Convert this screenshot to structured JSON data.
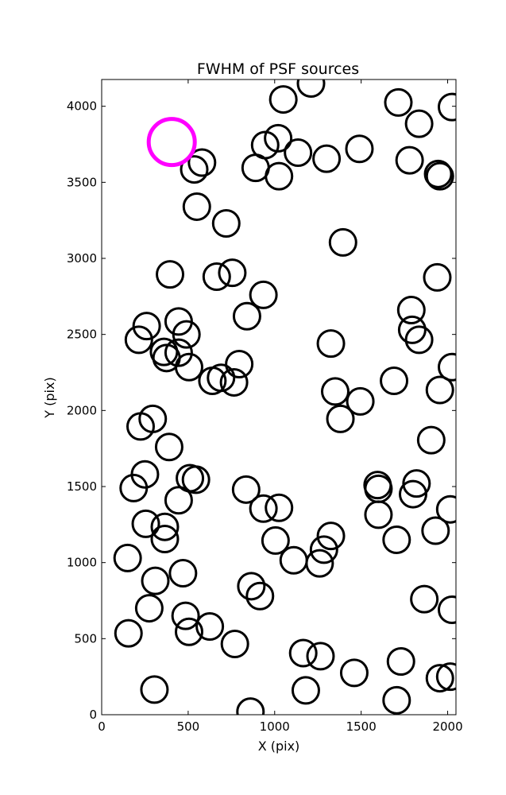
{
  "chart_data": {
    "type": "scatter",
    "title": "FWHM of PSF sources",
    "xlabel": "X (pix)",
    "ylabel": "Y (pix)",
    "xlim": [
      0,
      2048
    ],
    "ylim": [
      0,
      4176
    ],
    "xticks": [
      0,
      500,
      1000,
      1500,
      2000
    ],
    "yticks": [
      0,
      500,
      1000,
      1500,
      2000,
      2500,
      3000,
      3500,
      4000
    ],
    "grid": false,
    "marker": "open-circle",
    "marker_color": "#000000",
    "highlight_color": "#ff00ff",
    "highlight": {
      "x": 405,
      "y": 3765
    },
    "points": [
      {
        "x": 1210,
        "y": 4150
      },
      {
        "x": 1050,
        "y": 4045
      },
      {
        "x": 1715,
        "y": 4025
      },
      {
        "x": 2025,
        "y": 3995
      },
      {
        "x": 1835,
        "y": 3885
      },
      {
        "x": 945,
        "y": 3745
      },
      {
        "x": 1020,
        "y": 3790
      },
      {
        "x": 1490,
        "y": 3720
      },
      {
        "x": 1135,
        "y": 3695
      },
      {
        "x": 1300,
        "y": 3655
      },
      {
        "x": 1780,
        "y": 3645
      },
      {
        "x": 580,
        "y": 3630
      },
      {
        "x": 535,
        "y": 3585
      },
      {
        "x": 890,
        "y": 3595
      },
      {
        "x": 1025,
        "y": 3540
      },
      {
        "x": 1945,
        "y": 3555
      },
      {
        "x": 1955,
        "y": 3540
      },
      {
        "x": 550,
        "y": 3340
      },
      {
        "x": 720,
        "y": 3230
      },
      {
        "x": 1395,
        "y": 3105
      },
      {
        "x": 395,
        "y": 2895
      },
      {
        "x": 665,
        "y": 2880
      },
      {
        "x": 755,
        "y": 2905
      },
      {
        "x": 1940,
        "y": 2875
      },
      {
        "x": 935,
        "y": 2760
      },
      {
        "x": 1790,
        "y": 2660
      },
      {
        "x": 840,
        "y": 2620
      },
      {
        "x": 445,
        "y": 2585
      },
      {
        "x": 260,
        "y": 2555
      },
      {
        "x": 1795,
        "y": 2530
      },
      {
        "x": 490,
        "y": 2500
      },
      {
        "x": 215,
        "y": 2465
      },
      {
        "x": 1835,
        "y": 2465
      },
      {
        "x": 1325,
        "y": 2440
      },
      {
        "x": 360,
        "y": 2385
      },
      {
        "x": 445,
        "y": 2380
      },
      {
        "x": 375,
        "y": 2345
      },
      {
        "x": 505,
        "y": 2285
      },
      {
        "x": 795,
        "y": 2305
      },
      {
        "x": 2025,
        "y": 2285
      },
      {
        "x": 640,
        "y": 2195
      },
      {
        "x": 690,
        "y": 2215
      },
      {
        "x": 765,
        "y": 2185
      },
      {
        "x": 1690,
        "y": 2195
      },
      {
        "x": 1350,
        "y": 2125
      },
      {
        "x": 1955,
        "y": 2135
      },
      {
        "x": 1495,
        "y": 2060
      },
      {
        "x": 295,
        "y": 1945
      },
      {
        "x": 225,
        "y": 1895
      },
      {
        "x": 1380,
        "y": 1945
      },
      {
        "x": 1905,
        "y": 1805
      },
      {
        "x": 390,
        "y": 1760
      },
      {
        "x": 250,
        "y": 1580
      },
      {
        "x": 185,
        "y": 1490
      },
      {
        "x": 510,
        "y": 1555
      },
      {
        "x": 545,
        "y": 1545
      },
      {
        "x": 835,
        "y": 1480
      },
      {
        "x": 1595,
        "y": 1510
      },
      {
        "x": 1600,
        "y": 1485
      },
      {
        "x": 1820,
        "y": 1520
      },
      {
        "x": 1800,
        "y": 1450
      },
      {
        "x": 445,
        "y": 1410
      },
      {
        "x": 935,
        "y": 1355
      },
      {
        "x": 1025,
        "y": 1360
      },
      {
        "x": 2015,
        "y": 1350
      },
      {
        "x": 1600,
        "y": 1315
      },
      {
        "x": 255,
        "y": 1255
      },
      {
        "x": 365,
        "y": 1235
      },
      {
        "x": 365,
        "y": 1155
      },
      {
        "x": 1930,
        "y": 1210
      },
      {
        "x": 1325,
        "y": 1175
      },
      {
        "x": 1705,
        "y": 1150
      },
      {
        "x": 1005,
        "y": 1145
      },
      {
        "x": 150,
        "y": 1030
      },
      {
        "x": 1285,
        "y": 1085
      },
      {
        "x": 1110,
        "y": 1015
      },
      {
        "x": 1260,
        "y": 995
      },
      {
        "x": 470,
        "y": 930
      },
      {
        "x": 310,
        "y": 880
      },
      {
        "x": 865,
        "y": 845
      },
      {
        "x": 915,
        "y": 780
      },
      {
        "x": 1865,
        "y": 760
      },
      {
        "x": 2025,
        "y": 690
      },
      {
        "x": 275,
        "y": 700
      },
      {
        "x": 485,
        "y": 650
      },
      {
        "x": 625,
        "y": 580
      },
      {
        "x": 505,
        "y": 545
      },
      {
        "x": 155,
        "y": 535
      },
      {
        "x": 770,
        "y": 465
      },
      {
        "x": 1165,
        "y": 405
      },
      {
        "x": 1265,
        "y": 385
      },
      {
        "x": 1730,
        "y": 350
      },
      {
        "x": 1460,
        "y": 275
      },
      {
        "x": 1955,
        "y": 240
      },
      {
        "x": 2015,
        "y": 250
      },
      {
        "x": 1180,
        "y": 160
      },
      {
        "x": 305,
        "y": 165
      },
      {
        "x": 1705,
        "y": 95
      },
      {
        "x": 860,
        "y": 20
      }
    ]
  }
}
